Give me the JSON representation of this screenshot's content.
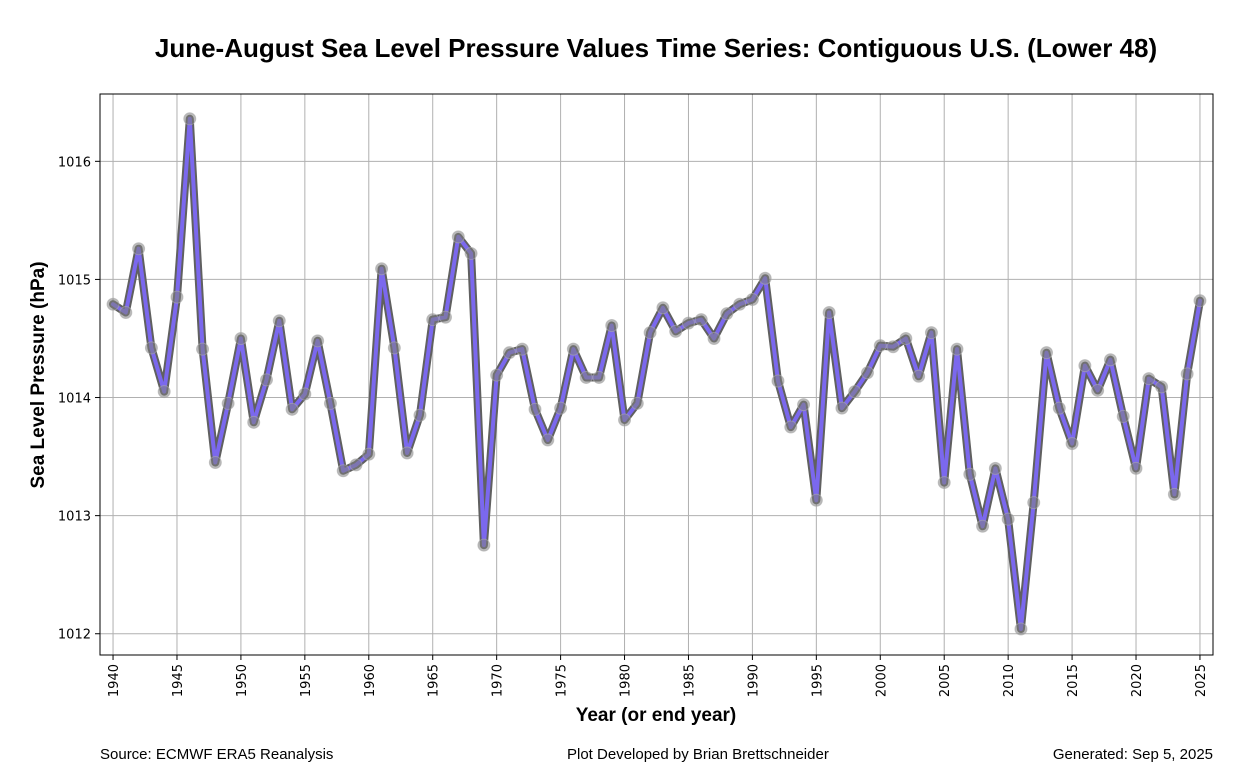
{
  "chart_data": {
    "type": "line",
    "title": "June-August Sea Level Pressure Values Time Series: Contiguous U.S. (Lower 48)",
    "xlabel": "Year (or end year)",
    "ylabel": "Sea Level Pressure (hPa)",
    "xlim": [
      1938.98,
      2026.02
    ],
    "ylim": [
      1011.82,
      1016.57
    ],
    "xticks": [
      1940,
      1945,
      1950,
      1955,
      1960,
      1965,
      1970,
      1975,
      1980,
      1985,
      1990,
      1995,
      2000,
      2005,
      2010,
      2015,
      2020,
      2025
    ],
    "yticks": [
      1012,
      1013,
      1014,
      1015,
      1016
    ],
    "grid": true,
    "legend": "none",
    "colors": {
      "line": "#7b68ee",
      "line_outline": "#606060",
      "marker": "#808080"
    },
    "series": [
      {
        "name": "Sea Level Pressure",
        "x": [
          1940,
          1941,
          1942,
          1943,
          1944,
          1945,
          1946,
          1947,
          1948,
          1949,
          1950,
          1951,
          1952,
          1953,
          1954,
          1955,
          1956,
          1957,
          1958,
          1959,
          1960,
          1961,
          1962,
          1963,
          1964,
          1965,
          1966,
          1967,
          1968,
          1969,
          1970,
          1971,
          1972,
          1973,
          1974,
          1975,
          1976,
          1977,
          1978,
          1979,
          1980,
          1981,
          1982,
          1983,
          1984,
          1985,
          1986,
          1987,
          1988,
          1989,
          1990,
          1991,
          1992,
          1993,
          1994,
          1995,
          1996,
          1997,
          1998,
          1999,
          2000,
          2001,
          2002,
          2003,
          2004,
          2005,
          2006,
          2007,
          2008,
          2009,
          2010,
          2011,
          2012,
          2013,
          2014,
          2015,
          2016,
          2017,
          2018,
          2019,
          2020,
          2021,
          2022,
          2023,
          2024,
          2025
        ],
        "values": [
          1014.79,
          1014.72,
          1015.26,
          1014.42,
          1014.05,
          1014.85,
          1016.36,
          1014.41,
          1013.45,
          1013.95,
          1014.5,
          1013.79,
          1014.15,
          1014.65,
          1013.9,
          1014.03,
          1014.48,
          1013.95,
          1013.38,
          1013.43,
          1013.52,
          1015.09,
          1014.42,
          1013.53,
          1013.85,
          1014.66,
          1014.68,
          1015.36,
          1015.22,
          1012.75,
          1014.19,
          1014.38,
          1014.41,
          1013.9,
          1013.64,
          1013.91,
          1014.41,
          1014.17,
          1014.17,
          1014.61,
          1013.81,
          1013.95,
          1014.55,
          1014.76,
          1014.56,
          1014.63,
          1014.66,
          1014.5,
          1014.71,
          1014.79,
          1014.83,
          1015.01,
          1014.14,
          1013.75,
          1013.94,
          1013.13,
          1014.72,
          1013.91,
          1014.05,
          1014.21,
          1014.44,
          1014.43,
          1014.5,
          1014.18,
          1014.55,
          1013.28,
          1014.41,
          1013.35,
          1012.91,
          1013.4,
          1012.97,
          1012.04,
          1013.11,
          1014.38,
          1013.91,
          1013.61,
          1014.27,
          1014.06,
          1014.32,
          1013.84,
          1013.4,
          1014.16,
          1014.09,
          1013.18,
          1014.2,
          1014.82
        ]
      }
    ]
  },
  "footer": {
    "source": "Source: ECMWF ERA5 Reanalysis",
    "credit": "Plot Developed by Brian Brettschneider",
    "generated": "Generated: Sep 5, 2025"
  }
}
